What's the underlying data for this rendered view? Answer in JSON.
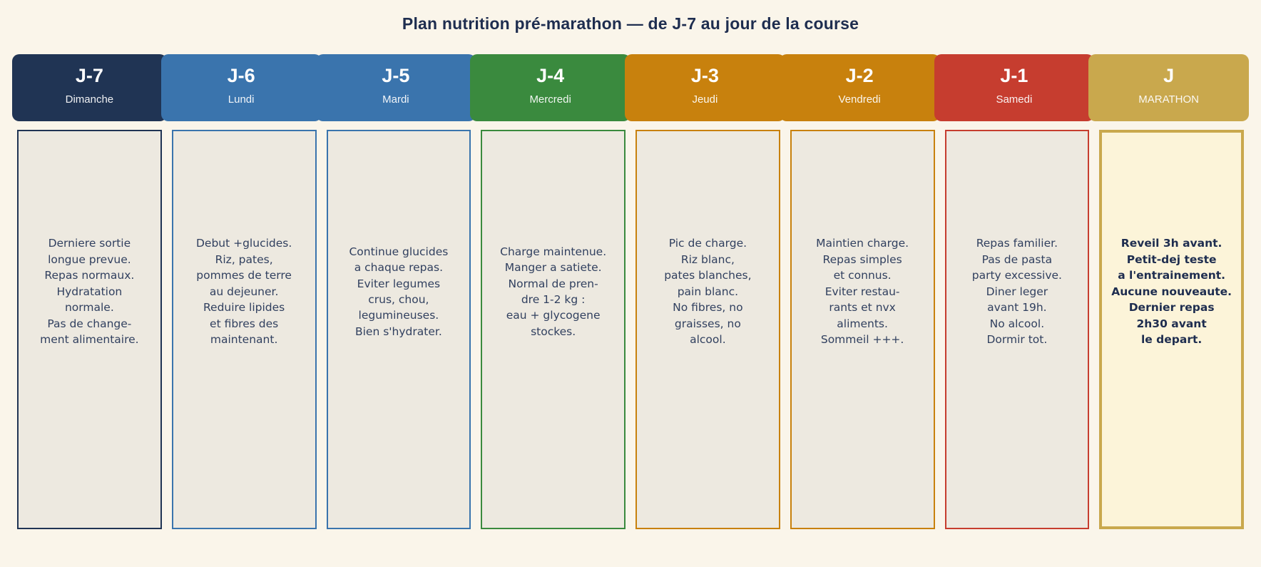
{
  "title": "Plan nutrition pré-marathon — de J-7 au jour de la course",
  "colors": {
    "page_bg": "#FAF5EA",
    "title_text": "#1E2D4F",
    "card_bg": "#EDE9E0",
    "card_text": "#31405F",
    "race_card_bg": "#FCF4D9",
    "race_card_text": "#1E2D4F",
    "header_text": "#FFFFFF"
  },
  "columns": [
    {
      "day_label": "J-7",
      "weekday": "Dimanche",
      "color": "#203454",
      "body": "Derniere sortie\nlongue prevue.\nRepas normaux.\nHydratation\nnormale.\nPas de change-\nment alimentaire.",
      "emphasis": false
    },
    {
      "day_label": "J-6",
      "weekday": "Lundi",
      "color": "#3A74AD",
      "body": "Debut +glucides.\nRiz, pates,\npommes de terre\nau dejeuner.\nReduire lipides\net fibres des\nmaintenant.",
      "emphasis": false
    },
    {
      "day_label": "J-5",
      "weekday": "Mardi",
      "color": "#3A74AD",
      "body": "Continue glucides\na chaque repas.\nEviter legumes\ncrus, chou,\nlegumineuses.\nBien s'hydrater.",
      "emphasis": false
    },
    {
      "day_label": "J-4",
      "weekday": "Mercredi",
      "color": "#3A8A3E",
      "body": "Charge maintenue.\nManger a satiete.\nNormal de pren-\ndre 1-2 kg :\neau + glycogene\nstockes.",
      "emphasis": false
    },
    {
      "day_label": "J-3",
      "weekday": "Jeudi",
      "color": "#C8810D",
      "body": "Pic de charge.\nRiz blanc,\npates blanches,\npain blanc.\nNo fibres, no\ngraisses, no\nalcool.",
      "emphasis": false
    },
    {
      "day_label": "J-2",
      "weekday": "Vendredi",
      "color": "#C8810D",
      "body": "Maintien charge.\nRepas simples\net connus.\nEviter restau-\nrants et nvx\naliments.\nSommeil +++.",
      "emphasis": false
    },
    {
      "day_label": "J-1",
      "weekday": "Samedi",
      "color": "#C63D2F",
      "body": "Repas familier.\nPas de pasta\nparty excessive.\nDiner leger\navant 19h.\nNo alcool.\nDormir tot.",
      "emphasis": false
    },
    {
      "day_label": "J",
      "weekday": "MARATHON",
      "color": "#C9A84D",
      "body": "Reveil 3h avant.\nPetit-dej teste\na l'entrainement.\nAucune nouveaute.\nDernier repas\n2h30 avant\nle depart.",
      "emphasis": true
    }
  ]
}
